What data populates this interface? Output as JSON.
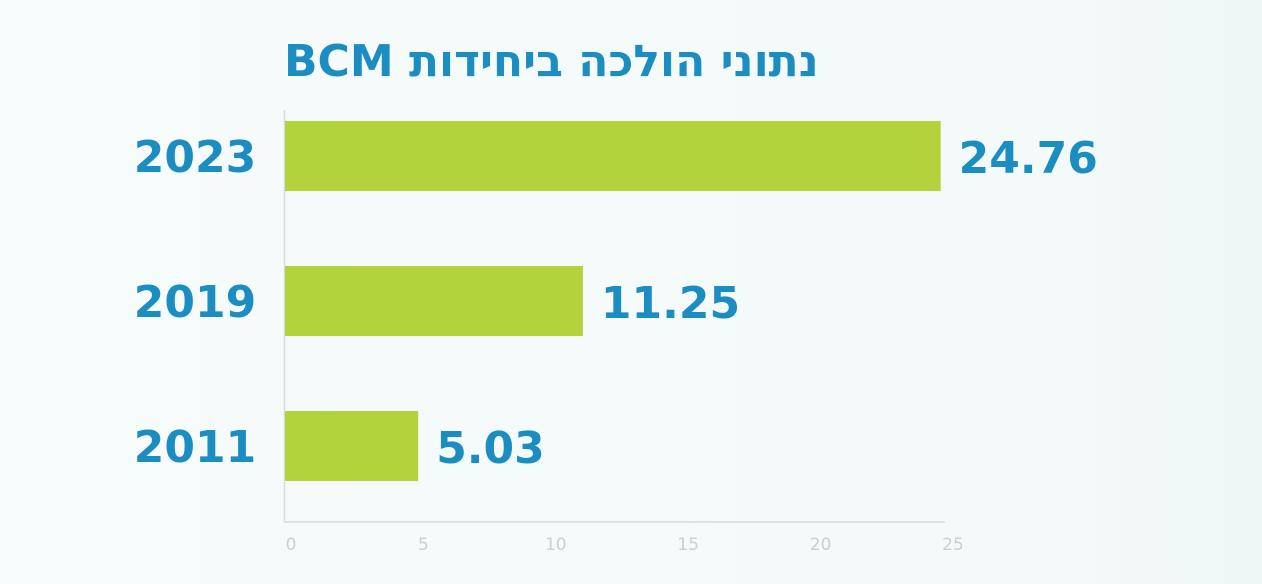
{
  "chart_data": {
    "type": "bar",
    "orientation": "horizontal",
    "title": "נתוני הולכה ביחידות BCM",
    "categories": [
      "2023",
      "2019",
      "2011"
    ],
    "values": [
      24.76,
      11.25,
      5.03
    ],
    "value_labels": [
      "24.76",
      "11.25",
      "5.03"
    ],
    "xlim": [
      0,
      25
    ],
    "x_ticks": [
      0,
      5,
      10,
      15,
      20,
      25
    ],
    "grid": false,
    "legend": "none",
    "colors": {
      "bar": "#b3d33c",
      "text": "#1b8dc0",
      "axis": "#d5dcdf",
      "tick": "#c7d0d3"
    }
  }
}
